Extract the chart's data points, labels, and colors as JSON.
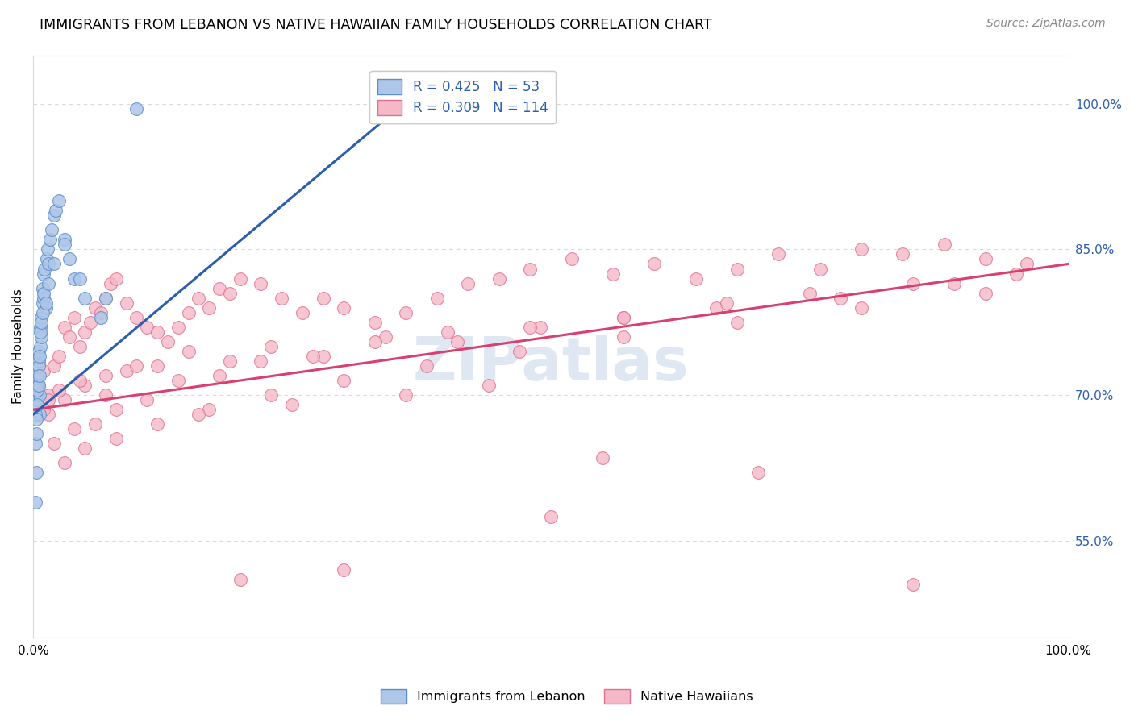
{
  "title": "IMMIGRANTS FROM LEBANON VS NATIVE HAWAIIAN FAMILY HOUSEHOLDS CORRELATION CHART",
  "source": "Source: ZipAtlas.com",
  "ylabel": "Family Households",
  "legend_blue_label": "Immigrants from Lebanon",
  "legend_pink_label": "Native Hawaiians",
  "blue_color": "#aec6e8",
  "blue_edge_color": "#5b8fc9",
  "blue_line_color": "#2b5fad",
  "pink_color": "#f5b8c8",
  "pink_edge_color": "#e07090",
  "pink_line_color": "#d94070",
  "legend_text_color": "#2b5fad",
  "right_axis_color": "#2b5fad",
  "watermark_color": "#c8d8ea",
  "grid_color": "#d8d8e0",
  "blue_line_start_x": 0.0,
  "blue_line_start_y": 68.0,
  "blue_line_end_x": 38.0,
  "blue_line_end_y": 102.0,
  "pink_line_start_x": 0.0,
  "pink_line_start_y": 68.5,
  "pink_line_end_x": 100.0,
  "pink_line_end_y": 83.5,
  "ylim_min": 45.0,
  "ylim_max": 105.0,
  "xlim_min": 0.0,
  "xlim_max": 100.0,
  "ytick_positions": [
    55.0,
    70.0,
    85.0,
    100.0
  ],
  "ytick_labels": [
    "55.0%",
    "70.0%",
    "85.0%",
    "100.0%"
  ],
  "blue_x": [
    0.3,
    0.3,
    0.4,
    0.5,
    0.5,
    0.6,
    0.6,
    0.7,
    0.7,
    0.8,
    0.8,
    0.9,
    0.9,
    1.0,
    1.0,
    1.1,
    1.2,
    1.3,
    1.4,
    1.5,
    1.6,
    1.8,
    2.0,
    2.2,
    2.5,
    3.0,
    3.5,
    4.0,
    5.0,
    6.5,
    0.2,
    0.2,
    0.3,
    0.3,
    0.4,
    0.4,
    0.5,
    0.5,
    0.6,
    0.6,
    0.7,
    0.8,
    0.9,
    1.0,
    1.2,
    1.5,
    2.0,
    3.0,
    4.5,
    7.0,
    0.2,
    0.3,
    10.0
  ],
  "blue_y": [
    69.5,
    71.0,
    72.0,
    73.5,
    74.5,
    68.0,
    70.0,
    75.0,
    77.0,
    76.0,
    78.0,
    79.5,
    81.0,
    80.0,
    82.5,
    83.0,
    79.0,
    84.0,
    85.0,
    83.5,
    86.0,
    87.0,
    88.5,
    89.0,
    90.0,
    86.0,
    84.0,
    82.0,
    80.0,
    78.0,
    65.0,
    68.0,
    66.0,
    67.5,
    69.0,
    70.5,
    71.0,
    73.0,
    72.0,
    74.0,
    76.5,
    77.5,
    78.5,
    80.5,
    79.5,
    81.5,
    83.5,
    85.5,
    82.0,
    80.0,
    59.0,
    62.0,
    99.5
  ],
  "pink_x": [
    0.5,
    1.0,
    1.5,
    2.0,
    2.5,
    3.0,
    3.5,
    4.0,
    4.5,
    5.0,
    5.5,
    6.0,
    6.5,
    7.0,
    7.5,
    8.0,
    9.0,
    10.0,
    11.0,
    12.0,
    13.0,
    14.0,
    15.0,
    16.0,
    17.0,
    18.0,
    19.0,
    20.0,
    22.0,
    24.0,
    26.0,
    28.0,
    30.0,
    33.0,
    36.0,
    39.0,
    42.0,
    45.0,
    48.0,
    52.0,
    56.0,
    60.0,
    64.0,
    68.0,
    72.0,
    76.0,
    80.0,
    84.0,
    88.0,
    92.0,
    96.0,
    1.5,
    3.0,
    5.0,
    7.0,
    9.0,
    12.0,
    15.0,
    19.0,
    23.0,
    28.0,
    34.0,
    41.0,
    49.0,
    57.0,
    66.0,
    75.0,
    85.0,
    95.0,
    2.0,
    4.0,
    6.0,
    8.0,
    11.0,
    14.0,
    18.0,
    22.0,
    27.0,
    33.0,
    40.0,
    48.0,
    57.0,
    67.0,
    78.0,
    89.0,
    3.0,
    5.0,
    8.0,
    12.0,
    17.0,
    23.0,
    30.0,
    38.0,
    47.0,
    57.0,
    68.0,
    80.0,
    92.0,
    44.0,
    36.0,
    25.0,
    16.0,
    10.0,
    7.0,
    4.5,
    2.5,
    1.5,
    1.0,
    55.0,
    70.0,
    85.0,
    50.0,
    30.0,
    20.0
  ],
  "pink_y": [
    71.0,
    72.5,
    70.0,
    73.0,
    74.0,
    77.0,
    76.0,
    78.0,
    75.0,
    76.5,
    77.5,
    79.0,
    78.5,
    80.0,
    81.5,
    82.0,
    79.5,
    78.0,
    77.0,
    76.5,
    75.5,
    77.0,
    78.5,
    80.0,
    79.0,
    81.0,
    80.5,
    82.0,
    81.5,
    80.0,
    78.5,
    80.0,
    79.0,
    77.5,
    78.5,
    80.0,
    81.5,
    82.0,
    83.0,
    84.0,
    82.5,
    83.5,
    82.0,
    83.0,
    84.5,
    83.0,
    85.0,
    84.5,
    85.5,
    84.0,
    83.5,
    68.0,
    69.5,
    71.0,
    70.0,
    72.5,
    73.0,
    74.5,
    73.5,
    75.0,
    74.0,
    76.0,
    75.5,
    77.0,
    78.0,
    79.0,
    80.5,
    81.5,
    82.5,
    65.0,
    66.5,
    67.0,
    68.5,
    69.5,
    71.5,
    72.0,
    73.5,
    74.0,
    75.5,
    76.5,
    77.0,
    78.0,
    79.5,
    80.0,
    81.5,
    63.0,
    64.5,
    65.5,
    67.0,
    68.5,
    70.0,
    71.5,
    73.0,
    74.5,
    76.0,
    77.5,
    79.0,
    80.5,
    71.0,
    70.0,
    69.0,
    68.0,
    73.0,
    72.0,
    71.5,
    70.5,
    69.5,
    68.5,
    63.5,
    62.0,
    50.5,
    57.5,
    52.0,
    51.0
  ]
}
